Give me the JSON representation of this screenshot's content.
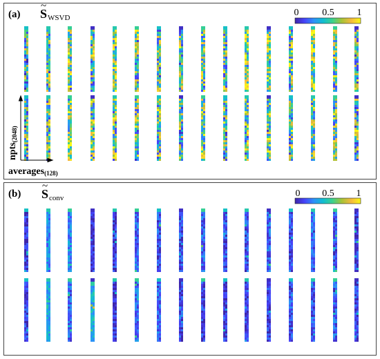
{
  "panel_a": {
    "label": "(a)",
    "title_symbol": "S",
    "title_subscript": "WSVD",
    "colorbar_ticks": [
      "0",
      "0.5",
      "1"
    ],
    "y_axis_label": "npts",
    "y_axis_sub": "(2048)",
    "x_axis_label": "averages",
    "x_axis_sub": "(128)",
    "rows": 2,
    "columns": 16,
    "mean_intensity": [
      [
        0.45,
        0.5,
        0.6,
        0.55,
        0.6,
        0.55,
        0.55,
        0.5,
        0.6,
        0.55,
        0.6,
        0.65,
        0.55,
        0.7,
        0.55,
        0.5
      ],
      [
        0.45,
        0.55,
        0.6,
        0.55,
        0.55,
        0.5,
        0.55,
        0.5,
        0.6,
        0.5,
        0.55,
        0.6,
        0.5,
        0.6,
        0.55,
        0.5
      ]
    ]
  },
  "panel_b": {
    "label": "(b)",
    "title_symbol": "S",
    "title_subscript": "conv",
    "colorbar_ticks": [
      "0",
      "0.5",
      "1"
    ],
    "rows": 2,
    "columns": 16,
    "mean_intensity": [
      [
        0.08,
        0.3,
        0.3,
        0.05,
        0.08,
        0.2,
        0.15,
        0.15,
        0.2,
        0.15,
        0.15,
        0.2,
        0.15,
        0.2,
        0.15,
        0.12
      ],
      [
        0.12,
        0.38,
        0.2,
        0.4,
        0.08,
        0.22,
        0.2,
        0.12,
        0.12,
        0.1,
        0.1,
        0.1,
        0.15,
        0.15,
        0.18,
        0.12
      ]
    ]
  },
  "colormap": [
    "#3e26a8",
    "#4743f9",
    "#2d91f8",
    "#12bed0",
    "#3bd28c",
    "#a8c337",
    "#f5b93e",
    "#f9f915"
  ]
}
